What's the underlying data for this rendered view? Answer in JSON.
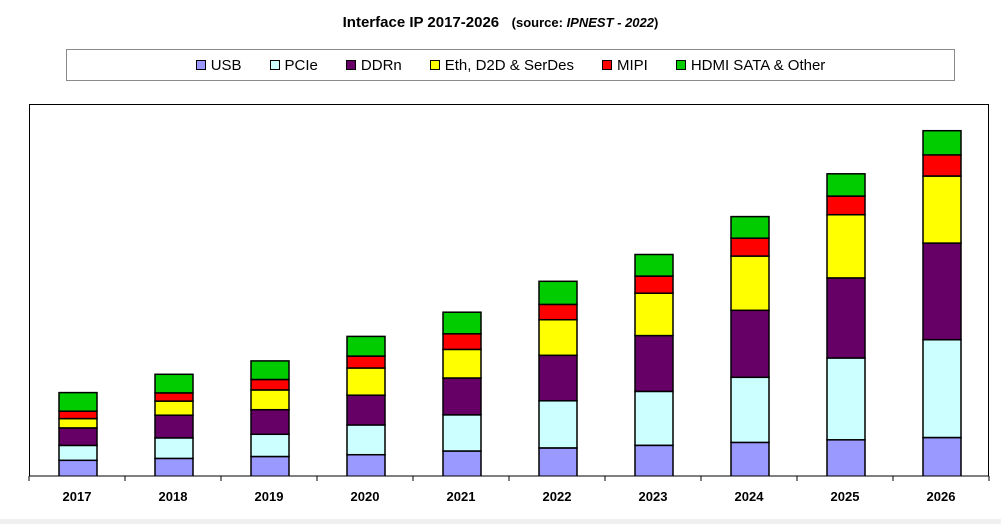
{
  "chart_data": {
    "type": "bar",
    "stacked": true,
    "title": "Interface IP  2017-2026",
    "source": "(source: IPNEST - 2022)",
    "source_prefix": "(source: ",
    "source_name": "IPNEST - 2022",
    "source_suffix": ")",
    "categories": [
      "2017",
      "2018",
      "2019",
      "2020",
      "2021",
      "2022",
      "2023",
      "2024",
      "2025",
      "2026"
    ],
    "ylim": [
      0,
      100
    ],
    "xlabel": "",
    "ylabel": "",
    "legend_position": "top",
    "series": [
      {
        "name": "USB",
        "color": "#9999FF",
        "values": [
          4.5,
          5.0,
          5.5,
          6.0,
          7.0,
          7.8,
          8.5,
          9.3,
          10.0,
          10.6
        ]
      },
      {
        "name": "PCIe",
        "color": "#CCFFFF",
        "values": [
          4.0,
          5.5,
          6.0,
          8.0,
          9.7,
          12.7,
          14.5,
          17.5,
          22.0,
          26.3
        ]
      },
      {
        "name": "DDRn",
        "color": "#660066",
        "values": [
          4.7,
          6.1,
          6.6,
          8.0,
          9.9,
          12.2,
          15.0,
          18.0,
          21.5,
          26.0
        ]
      },
      {
        "name": "Eth, D2D & SerDes",
        "color": "#FFFF00",
        "values": [
          2.5,
          3.8,
          5.3,
          7.3,
          7.7,
          9.6,
          11.4,
          14.6,
          17.0,
          18.0
        ]
      },
      {
        "name": "MIPI",
        "color": "#FF0000",
        "values": [
          2.0,
          2.2,
          2.8,
          3.2,
          4.2,
          4.1,
          4.6,
          4.8,
          5.0,
          5.7
        ]
      },
      {
        "name": "HDMI SATA & Other",
        "color": "#00CC00",
        "values": [
          5.0,
          5.0,
          5.0,
          5.3,
          5.8,
          6.2,
          5.8,
          5.8,
          6.0,
          6.5
        ]
      }
    ]
  }
}
